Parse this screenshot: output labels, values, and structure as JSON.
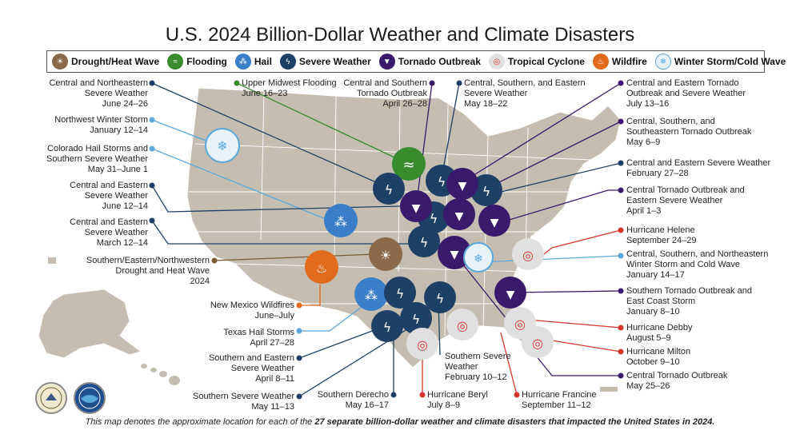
{
  "title": "U.S. 2024 Billion-Dollar Weather and Climate Disasters",
  "legend": [
    {
      "label": "Drought/Heat Wave",
      "icon": "drought-icon",
      "color": "#8a6a4a"
    },
    {
      "label": "Flooding",
      "icon": "flood-icon",
      "color": "#3a8a2e"
    },
    {
      "label": "Hail",
      "icon": "hail-icon",
      "color": "#3a7ec8"
    },
    {
      "label": "Severe Weather",
      "icon": "severe-weather-icon",
      "color": "#1e3f66"
    },
    {
      "label": "Tornado Outbreak",
      "icon": "tornado-icon",
      "color": "#3a1a6a"
    },
    {
      "label": "Tropical Cyclone",
      "icon": "cyclone-icon",
      "color": "#d9362b"
    },
    {
      "label": "Wildfire",
      "icon": "wildfire-icon",
      "color": "#e26a1c"
    },
    {
      "label": "Winter Storm/Cold Wave",
      "icon": "winter-icon",
      "color": "#5aa8dc"
    }
  ],
  "events": [
    {
      "name": "Central and Northeastern Severe Weather",
      "dates": "June 24–26",
      "type": "severe"
    },
    {
      "name": "Northwest Winter Storm",
      "dates": "January 12–14",
      "type": "winter"
    },
    {
      "name": "Colorado Hail Storms and Southern Severe Weather",
      "dates": "May 31–June 1",
      "type": "hail"
    },
    {
      "name": "Central and Eastern Severe Weather",
      "dates": "June 12–14",
      "type": "severe"
    },
    {
      "name": "Central and Eastern Severe Weather",
      "dates": "March 12–14",
      "type": "severe"
    },
    {
      "name": "Southern/Eastern/Northwestern Drought and Heat Wave",
      "dates": "2024",
      "type": "drought"
    },
    {
      "name": "New Mexico Wildfires",
      "dates": "June–July",
      "type": "wildfire"
    },
    {
      "name": "Texas Hail Storms",
      "dates": "April 27–28",
      "type": "hail"
    },
    {
      "name": "Southern and Eastern Severe Weather",
      "dates": "April 8–11",
      "type": "severe"
    },
    {
      "name": "Southern Severe Weather",
      "dates": "May 11–13",
      "type": "severe"
    },
    {
      "name": "Southern Derecho",
      "dates": "May 16–17",
      "type": "severe"
    },
    {
      "name": "Upper Midwest Flooding",
      "dates": "June 16–23",
      "type": "flood"
    },
    {
      "name": "Central and Southern Tornado Outbreak",
      "dates": "April 26–28",
      "type": "tornado"
    },
    {
      "name": "Central, Southern, and Eastern Severe Weather",
      "dates": "May 18–22",
      "type": "severe"
    },
    {
      "name": "Hurricane Beryl",
      "dates": "July 8–9",
      "type": "cyclone"
    },
    {
      "name": "Southern Severe Weather",
      "dates": "February 10–12",
      "type": "severe"
    },
    {
      "name": "Hurricane Francine",
      "dates": "September 11–12",
      "type": "cyclone"
    },
    {
      "name": "Central and Eastern Tornado Outbreak and Severe Weather",
      "dates": "July 13–16",
      "type": "tornado"
    },
    {
      "name": "Central, Southern, and Southeastern Tornado Outbreak",
      "dates": "May 6–9",
      "type": "tornado"
    },
    {
      "name": "Central and Eastern Severe Weather",
      "dates": "February 27–28",
      "type": "severe"
    },
    {
      "name": "Central Tornado Outbreak and Eastern Severe Weather",
      "dates": "April 1–3",
      "type": "tornado"
    },
    {
      "name": "Hurricane Helene",
      "dates": "September 24–29",
      "type": "cyclone"
    },
    {
      "name": "Central, Southern, and Northeastern Winter Storm and Cold Wave",
      "dates": "January 14–17",
      "type": "winter"
    },
    {
      "name": "Southern Tornado Outbreak and East Coast Storm",
      "dates": "January 8–10",
      "type": "tornado"
    },
    {
      "name": "Hurricane Debby",
      "dates": "August 5–9",
      "type": "cyclone"
    },
    {
      "name": "Hurricane Milton",
      "dates": "October 9–10",
      "type": "cyclone"
    },
    {
      "name": "Central Tornado Outbreak",
      "dates": "May 25–26",
      "type": "tornado"
    }
  ],
  "footer": {
    "pre": "This map denotes the approximate location for each of the ",
    "bold": "27 separate billion-dollar weather and climate disasters that impacted the United States in 2024.",
    "post": ""
  }
}
